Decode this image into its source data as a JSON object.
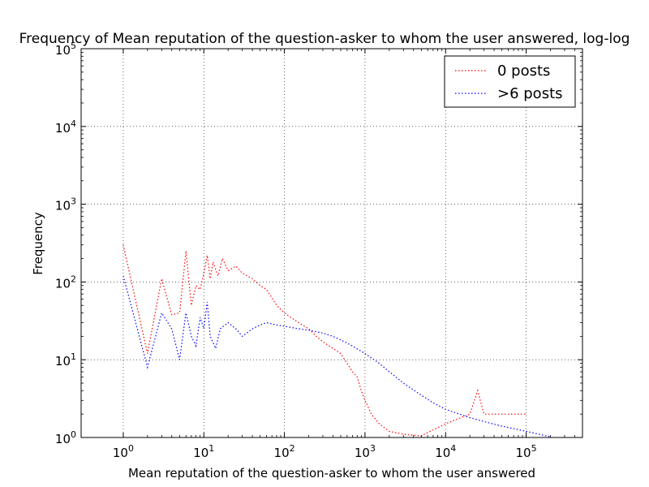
{
  "chart_data": {
    "type": "line",
    "title": "Frequency of Mean reputation of the question-asker to whom the user answered, log-log",
    "xlabel": "Mean reputation of the question-asker to whom the user answered",
    "ylabel": "Frequency",
    "xscale": "log",
    "yscale": "log",
    "xlim": [
      0.3,
      500000
    ],
    "ylim": [
      1,
      100000
    ],
    "grid": true,
    "legend_position": "top-right",
    "x_ticks": [
      {
        "value": 1,
        "base": "10",
        "exp": "0"
      },
      {
        "value": 10,
        "base": "10",
        "exp": "1"
      },
      {
        "value": 100,
        "base": "10",
        "exp": "2"
      },
      {
        "value": 1000,
        "base": "10",
        "exp": "3"
      },
      {
        "value": 10000,
        "base": "10",
        "exp": "4"
      },
      {
        "value": 100000,
        "base": "10",
        "exp": "5"
      }
    ],
    "y_ticks": [
      {
        "value": 1,
        "base": "10",
        "exp": "0"
      },
      {
        "value": 10,
        "base": "10",
        "exp": "1"
      },
      {
        "value": 100,
        "base": "10",
        "exp": "2"
      },
      {
        "value": 1000,
        "base": "10",
        "exp": "3"
      },
      {
        "value": 10000,
        "base": "10",
        "exp": "4"
      },
      {
        "value": 100000,
        "base": "10",
        "exp": "5"
      }
    ],
    "series": [
      {
        "name": "0 posts",
        "color": "#ff0000",
        "line_style": "dotted",
        "points": [
          [
            1,
            300
          ],
          [
            2,
            12
          ],
          [
            3,
            110
          ],
          [
            4,
            38
          ],
          [
            5,
            40
          ],
          [
            6,
            250
          ],
          [
            7,
            50
          ],
          [
            8,
            90
          ],
          [
            9,
            80
          ],
          [
            10,
            130
          ],
          [
            11,
            220
          ],
          [
            12,
            110
          ],
          [
            13,
            180
          ],
          [
            15,
            120
          ],
          [
            17,
            200
          ],
          [
            20,
            140
          ],
          [
            25,
            160
          ],
          [
            30,
            130
          ],
          [
            40,
            110
          ],
          [
            50,
            90
          ],
          [
            60,
            80
          ],
          [
            80,
            50
          ],
          [
            100,
            40
          ],
          [
            120,
            35
          ],
          [
            150,
            30
          ],
          [
            200,
            25
          ],
          [
            250,
            20
          ],
          [
            300,
            17
          ],
          [
            400,
            14
          ],
          [
            500,
            12
          ],
          [
            600,
            9
          ],
          [
            700,
            7
          ],
          [
            800,
            6
          ],
          [
            900,
            4
          ],
          [
            1000,
            3
          ],
          [
            1200,
            2
          ],
          [
            1500,
            1.5
          ],
          [
            2000,
            1.2
          ],
          [
            3000,
            1.1
          ],
          [
            5000,
            1.05
          ],
          [
            10000,
            1.5
          ],
          [
            20000,
            2
          ],
          [
            25000,
            4
          ],
          [
            30000,
            2
          ],
          [
            50000,
            2
          ],
          [
            100000,
            2
          ]
        ]
      },
      {
        "name": ">6 posts",
        "color": "#0000ff",
        "line_style": "dotted",
        "points": [
          [
            1,
            120
          ],
          [
            2,
            8
          ],
          [
            3,
            40
          ],
          [
            4,
            25
          ],
          [
            5,
            10
          ],
          [
            6,
            40
          ],
          [
            7,
            20
          ],
          [
            8,
            15
          ],
          [
            9,
            35
          ],
          [
            10,
            25
          ],
          [
            11,
            55
          ],
          [
            12,
            20
          ],
          [
            14,
            14
          ],
          [
            16,
            25
          ],
          [
            20,
            30
          ],
          [
            25,
            25
          ],
          [
            30,
            20
          ],
          [
            40,
            25
          ],
          [
            50,
            28
          ],
          [
            60,
            30
          ],
          [
            80,
            28
          ],
          [
            100,
            27
          ],
          [
            150,
            25
          ],
          [
            200,
            24
          ],
          [
            300,
            22
          ],
          [
            400,
            20
          ],
          [
            500,
            18
          ],
          [
            700,
            15
          ],
          [
            1000,
            12
          ],
          [
            1500,
            9
          ],
          [
            2000,
            7
          ],
          [
            3000,
            5
          ],
          [
            5000,
            3.5
          ],
          [
            7000,
            2.8
          ],
          [
            10000,
            2.3
          ],
          [
            20000,
            1.8
          ],
          [
            30000,
            1.6
          ],
          [
            50000,
            1.4
          ],
          [
            100000,
            1.2
          ],
          [
            200000,
            1.02
          ]
        ]
      }
    ]
  }
}
